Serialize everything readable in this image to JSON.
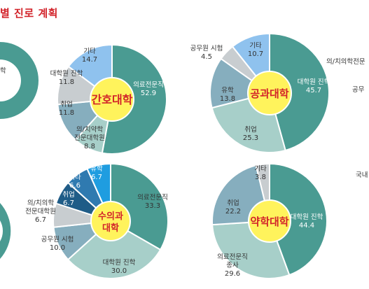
{
  "header": {
    "title": "별 진로 계획"
  },
  "edge_labels": {
    "left_top": "학",
    "right_top_1": "의/치의학전문",
    "right_top_2": "공무",
    "right_mid": "국내"
  },
  "colors": {
    "teal": "#4a9b92",
    "light_teal": "#a7cfc9",
    "slate_blue": "#86aebe",
    "gray": "#c8cdd0",
    "sky": "#8fc2ee",
    "dark_blue": "#1f5c87",
    "mid_blue": "#2f7ab0",
    "bright_blue": "#1f9de0",
    "center_yellow": "#fff35c",
    "title_red": "#d2232a"
  },
  "chart_data": [
    {
      "type": "pie",
      "center_label": "간호대학",
      "slices": [
        {
          "label": "의료전문직",
          "value": 52.9,
          "color": "#4a9b92"
        },
        {
          "label": "의/치약학 전문대학원",
          "value": 8.8,
          "color": "#a7cfc9"
        },
        {
          "label": "취업",
          "value": 11.8,
          "color": "#86aebe"
        },
        {
          "label": "대학원 진학",
          "value": 11.8,
          "color": "#c8cdd0"
        },
        {
          "label": "기타",
          "value": 14.7,
          "color": "#8fc2ee"
        }
      ]
    },
    {
      "type": "pie",
      "center_label": "공과대학",
      "slices": [
        {
          "label": "대학원 진학",
          "value": 45.7,
          "color": "#4a9b92"
        },
        {
          "label": "취업",
          "value": 25.3,
          "color": "#a7cfc9"
        },
        {
          "label": "유학",
          "value": 13.8,
          "color": "#86aebe"
        },
        {
          "label": "공무원 시험",
          "value": 4.5,
          "color": "#c8cdd0"
        },
        {
          "label": "기타",
          "value": 10.7,
          "color": "#8fc2ee"
        }
      ]
    },
    {
      "type": "pie",
      "center_label": "수의과 대학",
      "slices": [
        {
          "label": "의료전문직",
          "value": 33.3,
          "color": "#4a9b92"
        },
        {
          "label": "대학원 진학",
          "value": 30.0,
          "color": "#a7cfc9"
        },
        {
          "label": "공무원 시험",
          "value": 10.0,
          "color": "#86aebe"
        },
        {
          "label": "의/치의학 전문대학원",
          "value": 6.7,
          "color": "#c8cdd0"
        },
        {
          "label": "취업",
          "value": 6.7,
          "color": "#1f5c87"
        },
        {
          "label": "기타",
          "value": 6.6,
          "color": "#2f7ab0"
        },
        {
          "label": "유학",
          "value": 6.7,
          "color": "#1f9de0"
        }
      ]
    },
    {
      "type": "pie",
      "center_label": "약학대학",
      "slices": [
        {
          "label": "대학원 진학",
          "value": 44.4,
          "color": "#4a9b92"
        },
        {
          "label": "의료전문직 종사",
          "value": 29.6,
          "color": "#a7cfc9"
        },
        {
          "label": "취업",
          "value": 22.2,
          "color": "#86aebe"
        },
        {
          "label": "기타",
          "value": 3.8,
          "color": "#c8cdd0"
        }
      ]
    }
  ]
}
